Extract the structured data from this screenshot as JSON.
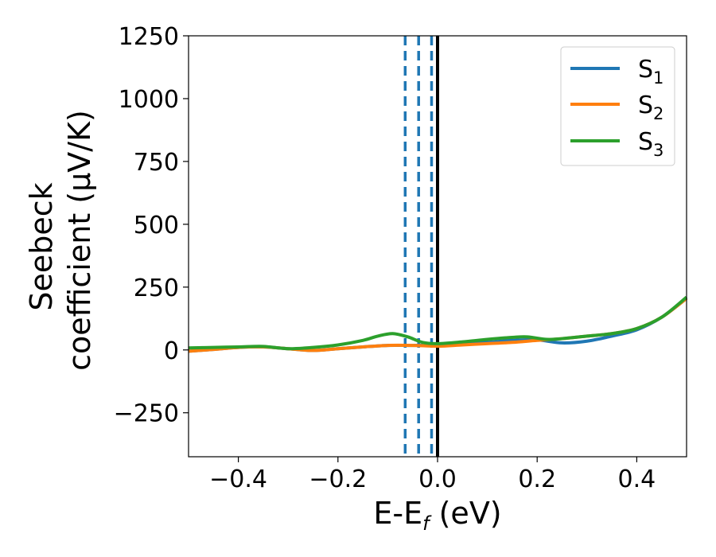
{
  "chart_data": {
    "type": "line",
    "title": "",
    "xlabel": {
      "main": "E-E",
      "sub": "f",
      "suffix": " (eV)"
    },
    "ylabel": {
      "line1": "Seebeck",
      "line2": "coefficient  (μV/K)"
    },
    "xlim": [
      -0.5,
      0.5
    ],
    "ylim": [
      -425,
      1250
    ],
    "xticks": [
      -0.4,
      -0.2,
      0.0,
      0.2,
      0.4
    ],
    "xtick_labels": [
      "−0.4",
      "−0.2",
      "0.0",
      "0.2",
      "0.4"
    ],
    "yticks": [
      -250,
      0,
      250,
      500,
      750,
      1000,
      1250
    ],
    "ytick_labels": [
      "−250",
      "0",
      "250",
      "500",
      "750",
      "1000",
      "1250"
    ],
    "grid": false,
    "legend_position": "top-right",
    "colors": {
      "S1": "#1f77b4",
      "S2": "#ff7f0e",
      "S3": "#2ca02c",
      "fermi_line": "#000000",
      "dashed_lines": "#1f77b4"
    },
    "series": [
      {
        "name": "S1",
        "legend": {
          "main": "S",
          "sub": "1"
        },
        "color": "#1f77b4",
        "x": [
          -0.5,
          -0.45,
          -0.4,
          -0.35,
          -0.3,
          -0.25,
          -0.2,
          -0.15,
          -0.1,
          -0.05,
          0.0,
          0.05,
          0.1,
          0.15,
          0.2,
          0.25,
          0.3,
          0.35,
          0.4,
          0.45,
          0.5
        ],
        "y": [
          -5,
          2,
          10,
          12,
          5,
          -2,
          5,
          12,
          18,
          18,
          20,
          24,
          30,
          38,
          40,
          28,
          35,
          55,
          80,
          130,
          205
        ]
      },
      {
        "name": "S2",
        "legend": {
          "main": "S",
          "sub": "2"
        },
        "color": "#ff7f0e",
        "x": [
          -0.5,
          -0.45,
          -0.4,
          -0.35,
          -0.3,
          -0.25,
          -0.2,
          -0.15,
          -0.1,
          -0.05,
          0.0,
          0.05,
          0.1,
          0.15,
          0.2,
          0.25,
          0.3,
          0.35,
          0.4,
          0.45,
          0.5
        ],
        "y": [
          -5,
          2,
          10,
          12,
          5,
          -2,
          5,
          12,
          18,
          18,
          15,
          20,
          25,
          30,
          38,
          45,
          55,
          65,
          85,
          130,
          205
        ]
      },
      {
        "name": "S3",
        "legend": {
          "main": "S",
          "sub": "3"
        },
        "color": "#2ca02c",
        "x": [
          -0.5,
          -0.45,
          -0.4,
          -0.35,
          -0.3,
          -0.25,
          -0.2,
          -0.15,
          -0.12,
          -0.09,
          -0.06,
          -0.03,
          0.0,
          0.05,
          0.1,
          0.15,
          0.18,
          0.22,
          0.25,
          0.3,
          0.35,
          0.4,
          0.45,
          0.5
        ],
        "y": [
          8,
          10,
          12,
          14,
          5,
          10,
          20,
          38,
          55,
          65,
          52,
          30,
          25,
          32,
          42,
          50,
          52,
          42,
          45,
          55,
          65,
          85,
          130,
          210
        ]
      }
    ],
    "vertical_lines": [
      {
        "x": -0.065,
        "style": "dashed",
        "color": "#1f77b4"
      },
      {
        "x": -0.038,
        "style": "dashed",
        "color": "#1f77b4"
      },
      {
        "x": -0.012,
        "style": "dashed",
        "color": "#1f77b4"
      },
      {
        "x": 0.0,
        "style": "solid",
        "color": "#000000"
      }
    ]
  }
}
